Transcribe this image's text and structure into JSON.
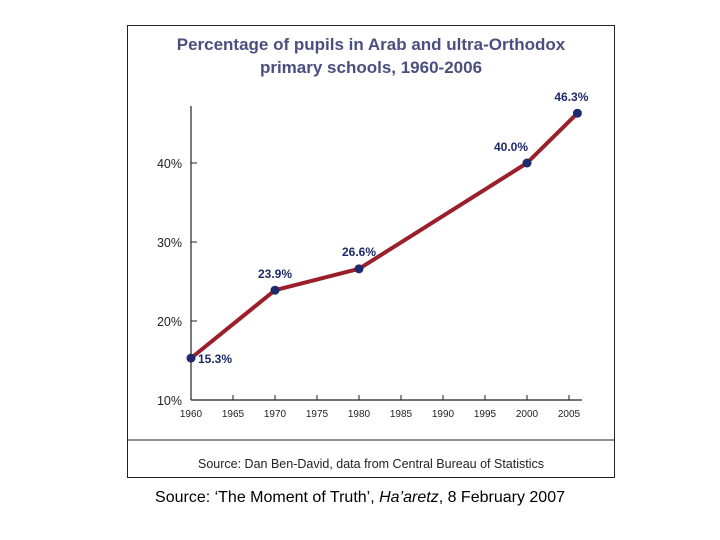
{
  "chart_data": {
    "type": "line",
    "title": [
      "Percentage of pupils in Arab and ultra-Orthodox",
      "primary schools, 1960-2006"
    ],
    "x": [
      1960,
      1970,
      1980,
      2000,
      2006
    ],
    "series": [
      {
        "values": [
          15.3,
          23.9,
          26.6,
          40.0,
          46.3
        ],
        "labels": [
          "15.3%",
          "23.9%",
          "26.6%",
          "40.0%",
          "46.3%"
        ]
      }
    ],
    "x_ticks": [
      "1960",
      "1965",
      "1970",
      "1975",
      "1980",
      "1985",
      "1990",
      "1995",
      "2000",
      "2005"
    ],
    "y_ticks": [
      "10%",
      "20%",
      "30%",
      "40%"
    ],
    "xlim": [
      1960,
      2005
    ],
    "ylim": [
      10,
      40
    ],
    "grid": false,
    "source": "Source: Dan Ben-David, data from Central Bureau of Statistics"
  },
  "colors": {
    "title": "#4a4f80",
    "line": "#9b1f2b",
    "marker": "#1d2a6b",
    "label": "#1d2a6b",
    "axis": "#222222"
  },
  "caption": {
    "prefix": "Source: ‘The Moment of Truth’, ",
    "publication": "Ha’aretz",
    "suffix": ", 8 February 2007"
  }
}
